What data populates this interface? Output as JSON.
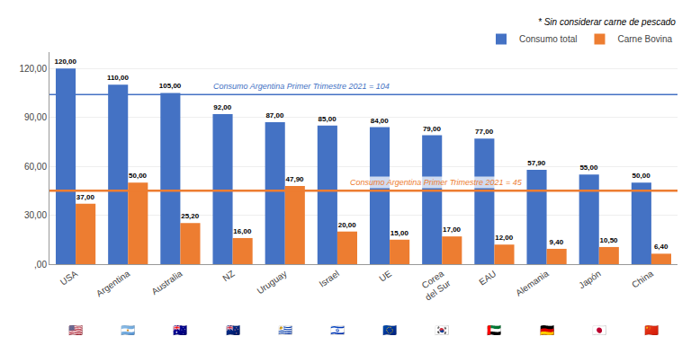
{
  "chart_data": {
    "type": "bar",
    "categories": [
      "USA",
      "Argentina",
      "Australia",
      "NZ",
      "Uruguay",
      "Israel",
      "UE",
      "Corea\ndel Sur",
      "EAU",
      "Alemania",
      "Japón",
      "China"
    ],
    "series": [
      {
        "name": "Consumo total",
        "color": "#4472C4",
        "values": [
          120.0,
          110.0,
          105.0,
          92.0,
          87.0,
          85.0,
          84.0,
          79.0,
          77.0,
          57.9,
          55.0,
          50.0
        ],
        "value_labels": [
          "120,00",
          "110,00",
          "105,00",
          "92,00",
          "87,00",
          "85,00",
          "84,00",
          "79,00",
          "77,00",
          "57,90",
          "55,00",
          "50,00"
        ]
      },
      {
        "name": "Carne Bovina",
        "color": "#ED7D31",
        "values": [
          37.0,
          50.0,
          25.2,
          16.0,
          47.9,
          20.0,
          15.0,
          17.0,
          12.0,
          9.4,
          10.5,
          6.4
        ],
        "value_labels": [
          "37,00",
          "50,00",
          "25,20",
          "16,00",
          "47,90",
          "20,00",
          "15,00",
          "17,00",
          "12,00",
          "9,40",
          "10,50",
          "6,40"
        ]
      }
    ],
    "ylim": [
      0,
      130
    ],
    "yticks": [
      {
        "value": 0,
        "label": ",00"
      },
      {
        "value": 30,
        "label": "30,00"
      },
      {
        "value": 60,
        "label": "60,00"
      },
      {
        "value": 90,
        "label": "90,00"
      },
      {
        "value": 120,
        "label": "120,00"
      }
    ],
    "grid": true,
    "legend": "upper right",
    "data_labels": true,
    "reference_lines": [
      {
        "value": 104,
        "label": "Consumo Argentina Primer Trimestre 2021 = 104",
        "color": "#4472C4"
      },
      {
        "value": 45,
        "label": "Consumo Argentina Primer Trimestre 2021 = 45",
        "color": "#ED7D31"
      }
    ],
    "annotations": [
      {
        "text": "* Sin considerar carne de pescado"
      },
      {
        "text": "🇺🇸",
        "x": "USA"
      },
      {
        "text": "🇦🇷",
        "x": "Argentina"
      },
      {
        "text": "🇦🇺",
        "x": "Australia"
      },
      {
        "text": "🇳🇿",
        "x": "NZ"
      },
      {
        "text": "🇺🇾",
        "x": "Uruguay"
      },
      {
        "text": "🇮🇱",
        "x": "Israel"
      },
      {
        "text": "🇪🇺",
        "x": "UE"
      },
      {
        "text": "🇰🇷",
        "x": "Corea\ndel Sur"
      },
      {
        "text": "🇦🇪",
        "x": "EAU"
      },
      {
        "text": "🇩🇪",
        "x": "Alemania"
      },
      {
        "text": "🇯🇵",
        "x": "Japón"
      },
      {
        "text": "🇨🇳",
        "x": "China"
      }
    ]
  }
}
